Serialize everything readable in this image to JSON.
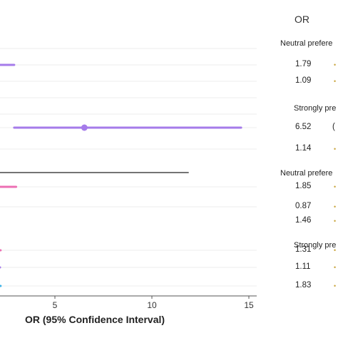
{
  "chart_data": {
    "type": "forest",
    "xlabel": "OR (95% Confidence Interval)",
    "xlim": [
      0,
      15
    ],
    "xticks": [
      5,
      10,
      15
    ],
    "grid": true,
    "or_header": "OR",
    "groups": [
      {
        "label": "Neutral prefere",
        "rows": [
          0,
          1
        ]
      },
      {
        "label": "Strongly pre",
        "rows": [
          2,
          3
        ]
      },
      {
        "label": "Neutral prefere",
        "rows": [
          4,
          5,
          6
        ]
      },
      {
        "label": "Strongly pre",
        "rows": [
          7,
          8,
          9
        ]
      }
    ],
    "rows": [
      {
        "or": 1.79,
        "or_label": "1.79",
        "lower": null,
        "upper": 2.9,
        "color": "#a57bea",
        "ci_prefix": ""
      },
      {
        "or": 1.09,
        "or_label": "1.09",
        "lower": null,
        "upper": null,
        "color": "#a57bea",
        "ci_prefix": ""
      },
      {
        "or": 6.52,
        "or_label": "6.52",
        "lower": 2.9,
        "upper": 14.6,
        "color": "#a57bea",
        "ci_prefix": "("
      },
      {
        "or": 1.14,
        "or_label": "1.14",
        "lower": null,
        "upper": null,
        "color": "#a57bea",
        "ci_prefix": ""
      },
      {
        "or": 1.85,
        "or_label": "1.85",
        "lower": null,
        "upper": 3.0,
        "color": "#ec6fb3",
        "ci_prefix": ""
      },
      {
        "or": 0.87,
        "or_label": "0.87",
        "lower": null,
        "upper": null,
        "color": "#ec6fb3",
        "ci_prefix": ""
      },
      {
        "or": 1.46,
        "or_label": "1.46",
        "lower": null,
        "upper": null,
        "color": "#ec6fb3",
        "ci_prefix": ""
      },
      {
        "or": 1.31,
        "or_label": "1.31",
        "lower": null,
        "upper": 2.2,
        "color": "#ec6fb3",
        "ci_prefix": ""
      },
      {
        "or": 1.11,
        "or_label": "1.11",
        "lower": null,
        "upper": 2.1,
        "color": "#a57bea",
        "ci_prefix": ""
      },
      {
        "or": 1.83,
        "or_label": "1.83",
        "lower": null,
        "upper": 2.2,
        "color": "#3fb3e8",
        "ci_prefix": ""
      }
    ],
    "reference_line": {
      "upper": 11.9,
      "color": "#222222"
    }
  }
}
